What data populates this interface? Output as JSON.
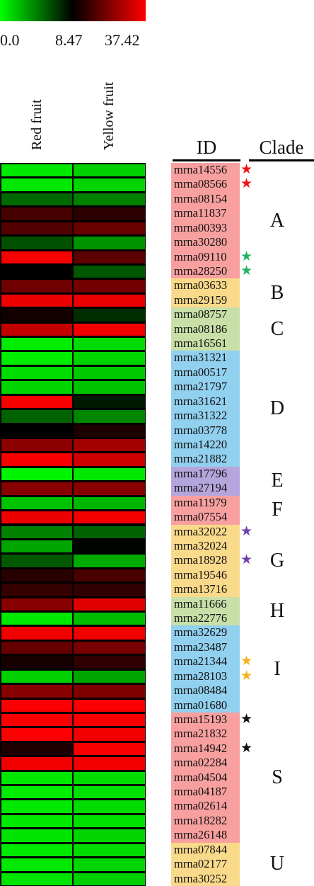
{
  "legend": {
    "gradient": [
      "#00ff00",
      "#000000",
      "#ff0000"
    ],
    "min_label": "0.0",
    "mid_label": "8.47",
    "max_label": "37.42"
  },
  "headers": {
    "id": "ID",
    "clade": "Clade"
  },
  "chart_data": {
    "type": "heatmap",
    "columns": [
      "Red fruit",
      "Yellow fruit"
    ],
    "color_scale": {
      "min": 0.0,
      "mid": 8.47,
      "max": 37.42
    },
    "rows": [
      {
        "id": "mrna14556",
        "values": [
          0.8,
          1.6
        ],
        "highlight": "#ee1111",
        "group": "#f8a0a0"
      },
      {
        "id": "mrna08566",
        "values": [
          0.8,
          1.4
        ],
        "highlight": "#ee1111",
        "group": "#f8a0a0"
      },
      {
        "id": "mrna08154",
        "values": [
          5.0,
          4.2
        ],
        "highlight": "",
        "group": "#f8a0a0"
      },
      {
        "id": "mrna11837",
        "values": [
          16.5,
          13.5
        ],
        "highlight": "",
        "group": "#f8a0a0"
      },
      {
        "id": "mrna00393",
        "values": [
          17.8,
          20.5
        ],
        "highlight": "",
        "group": "#f8a0a0"
      },
      {
        "id": "mrna30280",
        "values": [
          5.8,
          3.6
        ],
        "highlight": "",
        "group": "#f8a0a0"
      },
      {
        "id": "mrna09110",
        "values": [
          36.5,
          19.0
        ],
        "highlight": "#22b266",
        "group": "#f8a0a0"
      },
      {
        "id": "mrna28250",
        "values": [
          8.5,
          5.5
        ],
        "highlight": "#22b266",
        "group": "#f8a0a0"
      },
      {
        "id": "mrna03633",
        "values": [
          21.0,
          21.5
        ],
        "highlight": "",
        "group": "#f9d98a"
      },
      {
        "id": "mrna29159",
        "values": [
          35.5,
          35.0
        ],
        "highlight": "",
        "group": "#f9d98a"
      },
      {
        "id": "mrna08757",
        "values": [
          10.5,
          7.0
        ],
        "highlight": "",
        "group": "#c8e0a8"
      },
      {
        "id": "mrna08186",
        "values": [
          30.5,
          36.0
        ],
        "highlight": "",
        "group": "#c8e0a8"
      },
      {
        "id": "mrna16561",
        "values": [
          0.6,
          1.2
        ],
        "highlight": "",
        "group": "#c8e0a8"
      },
      {
        "id": "mrna31321",
        "values": [
          0.6,
          1.4
        ],
        "highlight": "",
        "group": "#92d0ef"
      },
      {
        "id": "mrna00517",
        "values": [
          1.2,
          1.8
        ],
        "highlight": "",
        "group": "#92d0ef"
      },
      {
        "id": "mrna21797",
        "values": [
          1.4,
          2.0
        ],
        "highlight": "",
        "group": "#92d0ef"
      },
      {
        "id": "mrna31621",
        "values": [
          36.5,
          7.6
        ],
        "highlight": "",
        "group": "#92d0ef"
      },
      {
        "id": "mrna31322",
        "values": [
          5.2,
          4.0
        ],
        "highlight": "",
        "group": "#92d0ef"
      },
      {
        "id": "mrna03778",
        "values": [
          8.6,
          11.8
        ],
        "highlight": "",
        "group": "#92d0ef"
      },
      {
        "id": "mrna14220",
        "values": [
          24.5,
          27.0
        ],
        "highlight": "",
        "group": "#92d0ef"
      },
      {
        "id": "mrna21882",
        "values": [
          36.5,
          32.0
        ],
        "highlight": "",
        "group": "#92d0ef"
      },
      {
        "id": "mrna17796",
        "values": [
          0.4,
          0.8
        ],
        "highlight": "",
        "group": "#b4a6dc"
      },
      {
        "id": "mrna27194",
        "values": [
          24.0,
          24.0
        ],
        "highlight": "",
        "group": "#b4a6dc"
      },
      {
        "id": "mrna11979",
        "values": [
          2.0,
          2.4
        ],
        "highlight": "",
        "group": "#f8a0a0"
      },
      {
        "id": "mrna07554",
        "values": [
          35.5,
          36.0
        ],
        "highlight": "",
        "group": "#f8a0a0"
      },
      {
        "id": "mrna32022",
        "values": [
          4.2,
          5.2
        ],
        "highlight": "#7040a8",
        "group": "#f9d98a"
      },
      {
        "id": "mrna32024",
        "values": [
          3.0,
          8.3
        ],
        "highlight": "",
        "group": "#f9d98a"
      },
      {
        "id": "mrna18928",
        "values": [
          5.5,
          2.8
        ],
        "highlight": "#7040a8",
        "group": "#f9d98a"
      },
      {
        "id": "mrna19546",
        "values": [
          13.0,
          17.0
        ],
        "highlight": "",
        "group": "#f9d98a"
      },
      {
        "id": "mrna13716",
        "values": [
          14.5,
          14.0
        ],
        "highlight": "",
        "group": "#f9d98a"
      },
      {
        "id": "mrna11666",
        "values": [
          24.0,
          34.0
        ],
        "highlight": "",
        "group": "#c8e0a8"
      },
      {
        "id": "mrna22776",
        "values": [
          0.8,
          2.2
        ],
        "highlight": "",
        "group": "#c8e0a8"
      },
      {
        "id": "mrna32629",
        "values": [
          36.0,
          36.0
        ],
        "highlight": "",
        "group": "#92d0ef"
      },
      {
        "id": "mrna23487",
        "values": [
          20.0,
          22.0
        ],
        "highlight": "",
        "group": "#92d0ef"
      },
      {
        "id": "mrna21344",
        "values": [
          11.0,
          14.0
        ],
        "highlight": "#f5b21c",
        "group": "#92d0ef"
      },
      {
        "id": "mrna28103",
        "values": [
          1.6,
          3.0
        ],
        "highlight": "#f5b21c",
        "group": "#92d0ef"
      },
      {
        "id": "mrna08484",
        "values": [
          24.0,
          23.0
        ],
        "highlight": "",
        "group": "#92d0ef"
      },
      {
        "id": "mrna01680",
        "values": [
          37.0,
          37.0
        ],
        "highlight": "",
        "group": "#92d0ef"
      },
      {
        "id": "mrna15193",
        "values": [
          37.0,
          37.0
        ],
        "highlight": "#111111",
        "group": "#f8a0a0"
      },
      {
        "id": "mrna21832",
        "values": [
          37.0,
          36.0
        ],
        "highlight": "",
        "group": "#f8a0a0"
      },
      {
        "id": "mrna14942",
        "values": [
          12.0,
          36.5
        ],
        "highlight": "#111111",
        "group": "#f8a0a0"
      },
      {
        "id": "mrna02284",
        "values": [
          36.0,
          36.0
        ],
        "highlight": "",
        "group": "#f8a0a0"
      },
      {
        "id": "mrna04504",
        "values": [
          0.8,
          1.2
        ],
        "highlight": "",
        "group": "#f8a0a0"
      },
      {
        "id": "mrna04187",
        "values": [
          0.6,
          1.0
        ],
        "highlight": "",
        "group": "#f8a0a0"
      },
      {
        "id": "mrna02614",
        "values": [
          0.8,
          1.2
        ],
        "highlight": "",
        "group": "#f8a0a0"
      },
      {
        "id": "mrna18282",
        "values": [
          0.7,
          1.0
        ],
        "highlight": "",
        "group": "#f8a0a0"
      },
      {
        "id": "mrna26148",
        "values": [
          0.9,
          1.4
        ],
        "highlight": "",
        "group": "#f8a0a0"
      },
      {
        "id": "mrna07844",
        "values": [
          0.7,
          1.2
        ],
        "highlight": "",
        "group": "#f9d98a"
      },
      {
        "id": "mrna02177",
        "values": [
          0.8,
          1.4
        ],
        "highlight": "",
        "group": "#f9d98a"
      },
      {
        "id": "mrna30252",
        "values": [
          0.9,
          1.6
        ],
        "highlight": "",
        "group": "#f9d98a"
      }
    ],
    "clades": [
      {
        "label": "A",
        "start": 0,
        "end": 7
      },
      {
        "label": "B",
        "start": 8,
        "end": 9
      },
      {
        "label": "C",
        "start": 10,
        "end": 12
      },
      {
        "label": "D",
        "start": 13,
        "end": 20
      },
      {
        "label": "E",
        "start": 21,
        "end": 22
      },
      {
        "label": "F",
        "start": 23,
        "end": 24
      },
      {
        "label": "G",
        "start": 25,
        "end": 29
      },
      {
        "label": "H",
        "start": 30,
        "end": 31
      },
      {
        "label": "I",
        "start": 32,
        "end": 37
      },
      {
        "label": "S",
        "start": 38,
        "end": 46
      },
      {
        "label": "U",
        "start": 47,
        "end": 49
      }
    ]
  }
}
